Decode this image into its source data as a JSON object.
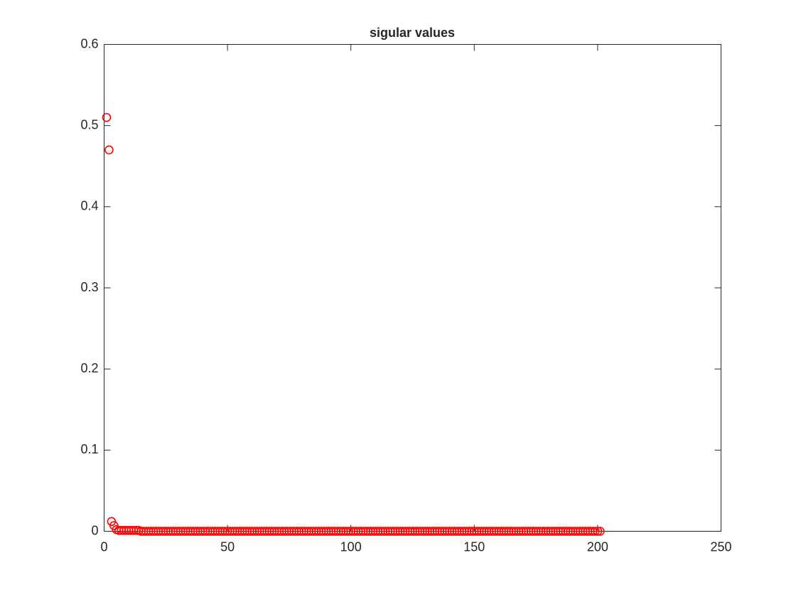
{
  "chart_data": {
    "type": "scatter",
    "title": "sigular values",
    "x": [
      1,
      2,
      3,
      4,
      5,
      6,
      7,
      8,
      9,
      10,
      11,
      12,
      13,
      14,
      15,
      16,
      17,
      18,
      19,
      20,
      21,
      22,
      23,
      24,
      25,
      26,
      27,
      28,
      29,
      30,
      31,
      32,
      33,
      34,
      35,
      36,
      37,
      38,
      39,
      40,
      41,
      42,
      43,
      44,
      45,
      46,
      47,
      48,
      49,
      50,
      51,
      52,
      53,
      54,
      55,
      56,
      57,
      58,
      59,
      60,
      61,
      62,
      63,
      64,
      65,
      66,
      67,
      68,
      69,
      70,
      71,
      72,
      73,
      74,
      75,
      76,
      77,
      78,
      79,
      80,
      81,
      82,
      83,
      84,
      85,
      86,
      87,
      88,
      89,
      90,
      91,
      92,
      93,
      94,
      95,
      96,
      97,
      98,
      99,
      100,
      101,
      102,
      103,
      104,
      105,
      106,
      107,
      108,
      109,
      110,
      111,
      112,
      113,
      114,
      115,
      116,
      117,
      118,
      119,
      120,
      121,
      122,
      123,
      124,
      125,
      126,
      127,
      128,
      129,
      130,
      131,
      132,
      133,
      134,
      135,
      136,
      137,
      138,
      139,
      140,
      141,
      142,
      143,
      144,
      145,
      146,
      147,
      148,
      149,
      150,
      151,
      152,
      153,
      154,
      155,
      156,
      157,
      158,
      159,
      160,
      161,
      162,
      163,
      164,
      165,
      166,
      167,
      168,
      169,
      170,
      171,
      172,
      173,
      174,
      175,
      176,
      177,
      178,
      179,
      180,
      181,
      182,
      183,
      184,
      185,
      186,
      187,
      188,
      189,
      190,
      191,
      192,
      193,
      194,
      195,
      196,
      197,
      198,
      199,
      200,
      201
    ],
    "values": [
      0.51,
      0.47,
      0.012,
      0.007,
      0.002,
      0.001,
      0.001,
      0.001,
      0.001,
      0.001,
      0.001,
      0.001,
      0.001,
      0.001,
      0,
      0,
      0,
      0,
      0,
      0,
      0,
      0,
      0,
      0,
      0,
      0,
      0,
      0,
      0,
      0,
      0,
      0,
      0,
      0,
      0,
      0,
      0,
      0,
      0,
      0,
      0,
      0,
      0,
      0,
      0,
      0,
      0,
      0,
      0,
      0,
      0,
      0,
      0,
      0,
      0,
      0,
      0,
      0,
      0,
      0,
      0,
      0,
      0,
      0,
      0,
      0,
      0,
      0,
      0,
      0,
      0,
      0,
      0,
      0,
      0,
      0,
      0,
      0,
      0,
      0,
      0,
      0,
      0,
      0,
      0,
      0,
      0,
      0,
      0,
      0,
      0,
      0,
      0,
      0,
      0,
      0,
      0,
      0,
      0,
      0,
      0,
      0,
      0,
      0,
      0,
      0,
      0,
      0,
      0,
      0,
      0,
      0,
      0,
      0,
      0,
      0,
      0,
      0,
      0,
      0,
      0,
      0,
      0,
      0,
      0,
      0,
      0,
      0,
      0,
      0,
      0,
      0,
      0,
      0,
      0,
      0,
      0,
      0,
      0,
      0,
      0,
      0,
      0,
      0,
      0,
      0,
      0,
      0,
      0,
      0,
      0,
      0,
      0,
      0,
      0,
      0,
      0,
      0,
      0,
      0,
      0,
      0,
      0,
      0,
      0,
      0,
      0,
      0,
      0,
      0,
      0,
      0,
      0,
      0,
      0,
      0,
      0,
      0,
      0,
      0,
      0,
      0,
      0,
      0,
      0,
      0,
      0,
      0,
      0,
      0,
      0,
      0,
      0,
      0,
      0,
      0,
      0,
      0,
      0,
      0,
      0
    ],
    "color": "#ff0000",
    "xlim": [
      0,
      250
    ],
    "xticks": [
      0,
      50,
      100,
      150,
      200,
      250
    ],
    "ylim": [
      0,
      0.6
    ],
    "yticks": [
      0,
      0.1,
      0.2,
      0.3,
      0.4,
      0.5,
      0.6
    ],
    "grid": false
  }
}
